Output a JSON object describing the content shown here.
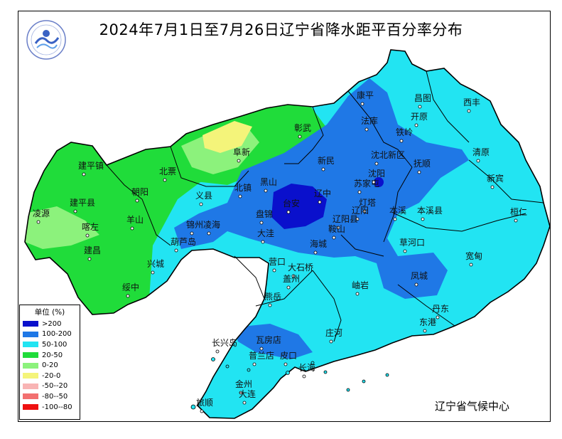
{
  "title": "2024年7月1日至7月26日辽宁省降水距平百分率分布",
  "credit": "辽宁省气候中心",
  "colors": {
    "gt200": "#0a10cc",
    "c100_200": "#1f78e6",
    "c50_100": "#22e4f2",
    "c20_50": "#20dc3a",
    "c0_20": "#8cf27c",
    "cm20_0": "#f4f47a",
    "boundary": "#000000",
    "legend_50_20": "#f8b4b4",
    "legend_80_50": "#f27070",
    "legend_100_80": "#ee1010"
  },
  "legend": {
    "title": "单位 (%)",
    "items": [
      {
        "label": ">200",
        "color": "#0a10cc"
      },
      {
        "label": "100-200",
        "color": "#1f78e6"
      },
      {
        "label": "50-100",
        "color": "#22e4f2"
      },
      {
        "label": "20-50",
        "color": "#20dc3a"
      },
      {
        "label": "0-20",
        "color": "#8cf27c"
      },
      {
        "label": "-20-0",
        "color": "#f4f47a"
      },
      {
        "label": "-50--20",
        "color": "#f8b4b4"
      },
      {
        "label": "-80--50",
        "color": "#f27070"
      },
      {
        "label": "-100--80",
        "color": "#ee1010"
      }
    ]
  },
  "cities": [
    {
      "name": "康平"
    },
    {
      "name": "昌图"
    },
    {
      "name": "西丰"
    },
    {
      "name": "法库"
    },
    {
      "name": "开原"
    },
    {
      "name": "铁岭"
    },
    {
      "name": "彰武"
    },
    {
      "name": "阜新"
    },
    {
      "name": "沈北新区"
    },
    {
      "name": "清原"
    },
    {
      "name": "新民"
    },
    {
      "name": "抚顺"
    },
    {
      "name": "建平镇"
    },
    {
      "name": "北票"
    },
    {
      "name": "沈阳"
    },
    {
      "name": "新宾"
    },
    {
      "name": "黑山"
    },
    {
      "name": "苏家屯"
    },
    {
      "name": "北镇"
    },
    {
      "name": "朝阳"
    },
    {
      "name": "义县"
    },
    {
      "name": "辽中"
    },
    {
      "name": "建平县"
    },
    {
      "name": "灯塔"
    },
    {
      "name": "台安"
    },
    {
      "name": "辽阳"
    },
    {
      "name": "本溪"
    },
    {
      "name": "本溪县"
    },
    {
      "name": "桓仁"
    },
    {
      "name": "凌源"
    },
    {
      "name": "盘锦"
    },
    {
      "name": "羊山"
    },
    {
      "name": "锦州"
    },
    {
      "name": "凌海"
    },
    {
      "name": "辽阳县"
    },
    {
      "name": "喀左"
    },
    {
      "name": "鞍山"
    },
    {
      "name": "大洼"
    },
    {
      "name": "葫芦岛"
    },
    {
      "name": "海城"
    },
    {
      "name": "草河口"
    },
    {
      "name": "建昌"
    },
    {
      "name": "宽甸"
    },
    {
      "name": "兴城"
    },
    {
      "name": "营口"
    },
    {
      "name": "大石桥"
    },
    {
      "name": "凤城"
    },
    {
      "name": "盖州"
    },
    {
      "name": "绥中"
    },
    {
      "name": "岫岩"
    },
    {
      "name": "熊岳"
    },
    {
      "name": "丹东"
    },
    {
      "name": "东港"
    },
    {
      "name": "庄河"
    },
    {
      "name": "瓦房店"
    },
    {
      "name": "长兴岛"
    },
    {
      "name": "普兰店"
    },
    {
      "name": "皮口"
    },
    {
      "name": "长海"
    },
    {
      "name": "金州"
    },
    {
      "name": "旅顺"
    },
    {
      "name": "大连"
    }
  ]
}
